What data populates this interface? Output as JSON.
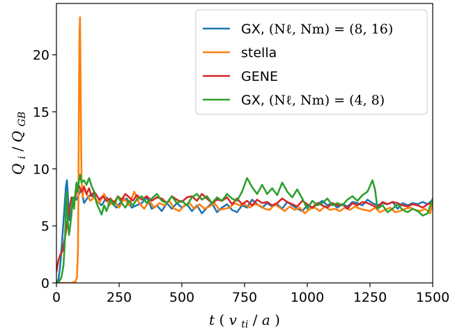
{
  "chart_data": {
    "type": "line",
    "xlabel": "t (v_ti/a)",
    "ylabel": "Q_i/Q_GB",
    "xlim": [
      0,
      1500
    ],
    "ylim": [
      0,
      24.5
    ],
    "xticks": [
      0,
      250,
      500,
      750,
      1000,
      1250,
      1500
    ],
    "yticks": [
      0,
      5,
      10,
      15,
      20
    ],
    "grid": false,
    "legend_position": "top-right",
    "series": [
      {
        "name": "GX, ",
        "name_math": "(Nℓ, Nm) = (8, 16)",
        "color": "#1f77b4",
        "x": [
          0,
          8,
          15,
          22,
          30,
          38,
          42,
          46,
          52,
          60,
          70,
          80,
          90,
          100,
          110,
          125,
          140,
          160,
          180,
          200,
          220,
          240,
          260,
          280,
          300,
          320,
          340,
          360,
          380,
          400,
          420,
          440,
          460,
          480,
          500,
          520,
          540,
          560,
          580,
          600,
          620,
          640,
          660,
          680,
          700,
          720,
          740,
          760,
          780,
          800,
          820,
          840,
          860,
          880,
          900,
          920,
          940,
          960,
          980,
          1000,
          1020,
          1040,
          1060,
          1080,
          1100,
          1120,
          1140,
          1160,
          1180,
          1200,
          1220,
          1240,
          1260,
          1280,
          1300,
          1320,
          1340,
          1360,
          1380,
          1400,
          1420,
          1440,
          1460,
          1480,
          1500
        ],
        "y": [
          0,
          0.3,
          1.5,
          3.5,
          6.0,
          8.5,
          9.0,
          7.5,
          5.5,
          6.5,
          7.5,
          7.3,
          7.8,
          8.2,
          7.0,
          7.5,
          7.8,
          7.2,
          6.8,
          7.5,
          7.0,
          6.6,
          7.2,
          7.4,
          6.6,
          6.8,
          7.0,
          7.5,
          6.5,
          6.8,
          6.3,
          7.0,
          6.5,
          7.0,
          6.6,
          6.9,
          6.3,
          6.8,
          6.1,
          6.6,
          7.0,
          6.2,
          6.6,
          6.9,
          6.4,
          6.2,
          6.8,
          6.6,
          7.3,
          6.9,
          6.6,
          7.0,
          6.7,
          6.9,
          6.5,
          7.1,
          6.8,
          6.5,
          6.3,
          6.8,
          6.6,
          6.9,
          7.2,
          6.8,
          7.0,
          6.6,
          6.9,
          6.7,
          7.1,
          7.0,
          6.8,
          7.3,
          7.0,
          6.8,
          7.0,
          6.9,
          7.1,
          6.5,
          7.0,
          6.8,
          7.0,
          6.9,
          7.1,
          6.9,
          7.3
        ]
      },
      {
        "name": "stella",
        "color": "#ff7f0e",
        "x": [
          0,
          20,
          40,
          60,
          75,
          82,
          86,
          88,
          90,
          92,
          94,
          97,
          100,
          104,
          110,
          120,
          135,
          150,
          170,
          190,
          210,
          230,
          250,
          270,
          290,
          310,
          330,
          350,
          370,
          390,
          410,
          430,
          450,
          470,
          490,
          510,
          530,
          550,
          570,
          590,
          610,
          630,
          650,
          670,
          690,
          710,
          730,
          750,
          770,
          790,
          810,
          830,
          850,
          870,
          890,
          910,
          930,
          950,
          970,
          990,
          1010,
          1030,
          1050,
          1070,
          1090,
          1110,
          1130,
          1150,
          1170,
          1190,
          1210,
          1230,
          1250,
          1270,
          1290,
          1310,
          1330,
          1350,
          1370,
          1390,
          1410,
          1430,
          1450,
          1470,
          1490,
          1500
        ],
        "y": [
          0,
          0,
          0,
          0,
          0.1,
          0.5,
          3.0,
          9.0,
          17.0,
          22.0,
          23.3,
          16.0,
          9.0,
          7.5,
          8.5,
          7.8,
          7.2,
          7.5,
          7.0,
          7.8,
          6.8,
          7.2,
          6.6,
          7.4,
          6.8,
          8.0,
          7.0,
          6.5,
          7.2,
          6.6,
          7.0,
          6.8,
          7.2,
          6.5,
          6.3,
          6.8,
          7.0,
          6.5,
          6.9,
          6.5,
          6.7,
          7.0,
          6.4,
          6.5,
          6.6,
          7.0,
          6.8,
          6.9,
          6.6,
          6.9,
          6.8,
          6.5,
          6.4,
          6.9,
          6.6,
          6.3,
          6.7,
          6.4,
          6.6,
          6.1,
          6.5,
          6.6,
          6.3,
          6.7,
          6.4,
          6.5,
          6.3,
          6.6,
          6.4,
          6.7,
          6.5,
          6.4,
          6.3,
          6.6,
          6.2,
          6.4,
          6.6,
          6.2,
          6.3,
          6.5,
          6.6,
          6.4,
          6.3,
          6.5,
          6.1,
          7.0
        ]
      },
      {
        "name": "GENE",
        "color": "#d62728",
        "x": [
          0,
          8,
          16,
          24,
          30,
          38,
          45,
          52,
          60,
          70,
          80,
          90,
          100,
          110,
          120,
          130,
          140,
          150,
          160,
          170,
          185,
          200,
          215,
          230,
          245,
          260,
          275,
          290,
          305,
          320,
          340,
          360,
          380,
          400,
          420,
          440,
          460,
          480,
          500,
          520,
          540,
          560,
          580,
          600,
          620,
          640,
          660,
          680,
          700,
          720,
          740,
          760,
          780,
          800,
          820,
          840,
          860,
          880,
          900,
          920,
          940,
          960,
          980,
          1000,
          1020,
          1040,
          1060,
          1080,
          1100,
          1120,
          1140,
          1160,
          1180,
          1200,
          1220,
          1240,
          1260,
          1280,
          1300,
          1320,
          1340,
          1360,
          1380,
          1400,
          1420,
          1440,
          1460,
          1480,
          1500
        ],
        "y": [
          1.0,
          2.0,
          2.5,
          2.8,
          3.5,
          4.5,
          5.5,
          6.5,
          7.5,
          7.0,
          8.0,
          8.5,
          8.0,
          8.4,
          7.8,
          8.3,
          7.6,
          8.0,
          7.7,
          7.3,
          7.6,
          7.2,
          7.4,
          7.0,
          7.6,
          7.3,
          7.8,
          7.5,
          7.2,
          7.7,
          7.3,
          7.6,
          7.2,
          7.5,
          7.4,
          7.0,
          7.6,
          7.3,
          7.1,
          7.5,
          7.6,
          7.2,
          7.8,
          7.4,
          7.0,
          7.3,
          7.2,
          7.5,
          6.9,
          7.4,
          6.9,
          7.2,
          6.8,
          7.3,
          7.0,
          7.1,
          6.8,
          7.0,
          7.4,
          7.1,
          6.9,
          6.7,
          7.2,
          6.9,
          6.6,
          7.0,
          6.8,
          6.6,
          7.0,
          6.8,
          6.9,
          6.5,
          7.0,
          6.8,
          7.1,
          7.0,
          6.8,
          6.6,
          7.1,
          6.9,
          7.1,
          7.0,
          6.8,
          6.7,
          6.9,
          6.8,
          6.6,
          6.9,
          7.1
        ]
      },
      {
        "name": "GX, ",
        "name_math": "(Nℓ, Nm) = (4, 8)",
        "color": "#2ca02c",
        "x": [
          0,
          10,
          20,
          28,
          32,
          36,
          40,
          45,
          50,
          55,
          60,
          65,
          70,
          75,
          80,
          85,
          90,
          95,
          100,
          110,
          120,
          130,
          140,
          150,
          160,
          170,
          180,
          190,
          200,
          215,
          230,
          245,
          260,
          275,
          290,
          305,
          320,
          340,
          360,
          380,
          400,
          420,
          440,
          460,
          480,
          500,
          520,
          540,
          560,
          580,
          600,
          620,
          640,
          660,
          680,
          700,
          720,
          740,
          760,
          780,
          800,
          820,
          840,
          860,
          880,
          900,
          920,
          940,
          960,
          980,
          1000,
          1020,
          1040,
          1060,
          1080,
          1100,
          1120,
          1140,
          1160,
          1180,
          1200,
          1220,
          1240,
          1250,
          1260,
          1270,
          1280,
          1300,
          1320,
          1340,
          1360,
          1380,
          1400,
          1420,
          1440,
          1460,
          1480,
          1500
        ],
        "y": [
          0,
          0.1,
          0.5,
          1.5,
          3.0,
          5.0,
          8.0,
          5.5,
          4.2,
          5.0,
          6.0,
          7.5,
          6.5,
          7.8,
          8.8,
          8.0,
          9.0,
          9.5,
          8.8,
          9.0,
          8.6,
          9.2,
          8.5,
          8.0,
          7.0,
          6.5,
          6.0,
          6.8,
          6.3,
          7.3,
          6.8,
          7.6,
          7.0,
          6.6,
          7.2,
          6.8,
          7.3,
          7.6,
          7.0,
          7.4,
          7.8,
          7.2,
          7.0,
          7.6,
          7.0,
          7.2,
          6.8,
          7.5,
          7.8,
          7.3,
          7.6,
          7.0,
          7.5,
          7.2,
          7.8,
          7.4,
          7.2,
          8.0,
          9.2,
          8.4,
          7.8,
          8.6,
          7.8,
          8.3,
          7.7,
          8.8,
          8.0,
          7.5,
          8.2,
          7.4,
          6.5,
          7.2,
          6.8,
          7.0,
          7.4,
          6.8,
          7.0,
          6.8,
          7.3,
          7.6,
          7.2,
          7.7,
          8.0,
          8.5,
          9.0,
          8.2,
          6.5,
          6.8,
          6.2,
          6.5,
          6.9,
          6.4,
          6.2,
          6.5,
          6.3,
          5.9,
          6.1,
          7.4
        ]
      }
    ]
  }
}
